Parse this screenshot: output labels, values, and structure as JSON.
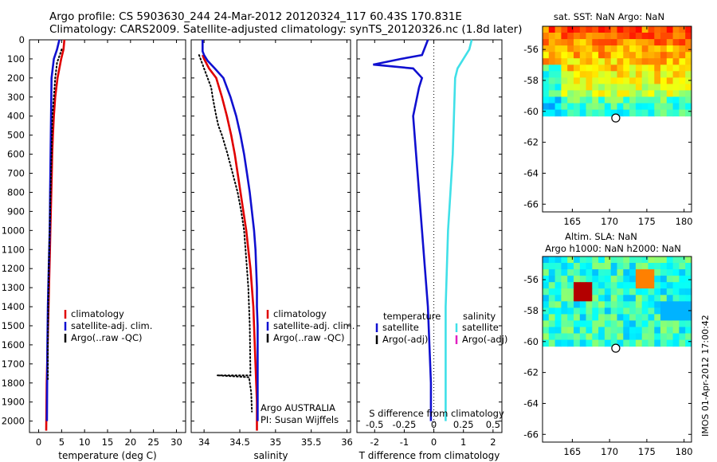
{
  "title_line1": "Argo profile: CS 5903630_244 24-Mar-2012 20120324_117 60.43S 170.831E",
  "title_line2": "Climatology: CARS2009. Satellite-adjusted climatology: synTS_20120326.nc (1.8d later)",
  "footer_stamp": "IMOS 01-Apr-2012 17:00:42",
  "colors": {
    "climatology": "#e00000",
    "satellite": "#1010d0",
    "argo": "#000000",
    "salinity_sat": "#40e0e8",
    "salinity_argo": "#e020c0"
  },
  "chart_data": [
    {
      "type": "line",
      "xlabel": "temperature (deg C)",
      "xticks": [
        "0",
        "5",
        "10",
        "15",
        "20",
        "25",
        "30"
      ],
      "yticks": [
        "0",
        "100",
        "200",
        "300",
        "400",
        "500",
        "600",
        "700",
        "800",
        "900",
        "1000",
        "1100",
        "1200",
        "1300",
        "1400",
        "1500",
        "1600",
        "1700",
        "1800",
        "1900",
        "2000"
      ],
      "xlim": [
        -2,
        32
      ],
      "ylim": [
        2060,
        0
      ],
      "legend_position": "lower-center",
      "series": [
        {
          "name": "climatology",
          "style": "solid",
          "x": [
            5.6,
            5.4,
            4.9,
            4.1,
            3.6,
            3.3,
            3.1,
            2.95,
            2.85,
            2.75,
            2.65,
            2.55,
            2.45,
            2.35,
            2.25,
            2.15,
            2.05,
            1.95,
            1.85,
            1.75,
            1.65
          ],
          "y": [
            0,
            50,
            100,
            200,
            300,
            400,
            500,
            600,
            700,
            800,
            900,
            1000,
            1100,
            1200,
            1300,
            1400,
            1500,
            1600,
            1700,
            1800,
            2050
          ]
        },
        {
          "name": "satellite-adj. clim.",
          "style": "solid",
          "x": [
            4.5,
            4.0,
            3.3,
            2.8,
            2.75,
            2.7,
            2.65,
            2.6,
            2.55,
            2.5,
            2.45,
            2.4,
            2.3,
            2.2,
            2.1,
            2.0,
            1.95,
            1.9,
            1.85,
            1.8
          ],
          "y": [
            0,
            50,
            100,
            200,
            300,
            400,
            500,
            600,
            700,
            800,
            900,
            1000,
            1100,
            1200,
            1300,
            1400,
            1500,
            1600,
            1800,
            2000
          ]
        },
        {
          "name": "Argo(..raw -QC)",
          "style": "dotted",
          "x": [
            5.0,
            4.6,
            4.0,
            3.6,
            3.3,
            3.0,
            2.9,
            2.8,
            2.7,
            2.6,
            2.5,
            2.4,
            2.3,
            2.2,
            2.1,
            2.0,
            2.0
          ],
          "y": [
            50,
            80,
            120,
            200,
            300,
            400,
            500,
            600,
            700,
            800,
            900,
            1000,
            1100,
            1200,
            1400,
            1600,
            1780
          ]
        }
      ]
    },
    {
      "type": "line",
      "xlabel": "salinity",
      "xticks": [
        "34",
        "34.5",
        "35",
        "35.5",
        "36"
      ],
      "xlim": [
        33.82,
        36.05
      ],
      "ylim": [
        2060,
        0
      ],
      "legend_position": "lower-right",
      "annotations": [
        "Argo AUSTRALIA",
        "PI: Susan Wijffels"
      ],
      "series": [
        {
          "name": "climatology",
          "style": "solid",
          "x": [
            33.98,
            34.0,
            34.07,
            34.17,
            34.25,
            34.32,
            34.38,
            34.43,
            34.47,
            34.51,
            34.55,
            34.59,
            34.62,
            34.65,
            34.67,
            34.69,
            34.7,
            34.71,
            34.72,
            34.73,
            34.74,
            34.74
          ],
          "y": [
            80,
            100,
            150,
            200,
            300,
            400,
            500,
            600,
            700,
            800,
            900,
            1000,
            1100,
            1200,
            1300,
            1400,
            1500,
            1600,
            1700,
            1800,
            1900,
            2050
          ]
        },
        {
          "name": "satellite-adj. clim.",
          "style": "solid",
          "x": [
            33.98,
            33.98,
            34.0,
            34.05,
            34.15,
            34.27,
            34.37,
            34.45,
            34.51,
            34.56,
            34.6,
            34.64,
            34.67,
            34.7,
            34.72,
            34.73,
            34.74,
            34.74,
            34.75,
            34.75,
            34.75,
            34.75
          ],
          "y": [
            0,
            60,
            80,
            110,
            150,
            200,
            300,
            400,
            500,
            600,
            700,
            800,
            900,
            1000,
            1100,
            1200,
            1300,
            1400,
            1500,
            1600,
            1800,
            2000
          ]
        },
        {
          "name": "Argo(..raw -QC)",
          "style": "dotted",
          "x": [
            33.93,
            34.0,
            34.05,
            34.1,
            34.12,
            34.17,
            34.2,
            34.25,
            34.33,
            34.4,
            34.47,
            34.52,
            34.56,
            34.58,
            34.6,
            34.62,
            34.64,
            34.65,
            34.18,
            34.63,
            34.66,
            34.67
          ],
          "y": [
            80,
            150,
            200,
            250,
            300,
            400,
            450,
            500,
            600,
            700,
            800,
            900,
            1000,
            1100,
            1200,
            1300,
            1500,
            1760,
            1760,
            1770,
            1850,
            1950
          ]
        }
      ]
    },
    {
      "type": "line",
      "xlabel": "T difference from climatology",
      "xlabel_top": "S difference from climatology",
      "xticks": [
        "-2",
        "-1",
        "0",
        "1",
        "2"
      ],
      "xticks_top": [
        "-0.5",
        "-0.25",
        "0",
        "0.25",
        "0.5"
      ],
      "xlim": [
        -2.6,
        2.3
      ],
      "ylim": [
        2060,
        0
      ],
      "legend_groups": [
        "temperature",
        "salinity"
      ],
      "legend_position": "lower-center",
      "series": [
        {
          "name": "satellite",
          "group": "temperature",
          "style": "solid",
          "x": [
            -0.2,
            -0.3,
            -0.4,
            -1.1,
            -2.05,
            -0.7,
            -0.4,
            -0.5,
            -0.7,
            -0.6,
            -0.5,
            -0.4,
            -0.3,
            -0.2,
            -0.15,
            -0.1,
            -0.1,
            -0.1
          ],
          "y": [
            0,
            40,
            80,
            100,
            130,
            150,
            200,
            250,
            400,
            600,
            800,
            1000,
            1200,
            1400,
            1600,
            1800,
            1950,
            2000
          ]
        },
        {
          "name": "Argo(-adj)",
          "group": "temperature",
          "style": "solid",
          "x": [],
          "y": []
        },
        {
          "name": "satellite",
          "group": "salinity",
          "style": "solid",
          "x": [
            0.32,
            0.3,
            0.25,
            0.2,
            0.18,
            0.17,
            0.16,
            0.14,
            0.12,
            0.11,
            0.1,
            0.1,
            0.1
          ],
          "y": [
            0,
            50,
            100,
            150,
            200,
            400,
            600,
            800,
            1000,
            1200,
            1400,
            1800,
            2000
          ]
        },
        {
          "name": "Argo(-adj)",
          "group": "salinity",
          "style": "solid",
          "x": [],
          "y": []
        }
      ]
    },
    {
      "type": "heatmap",
      "title": "sat. SST: NaN  Argo: NaN",
      "xticks": [
        "165",
        "170",
        "175",
        "180"
      ],
      "yticks": [
        "-56",
        "-58",
        "-60",
        "-62",
        "-64",
        "-66"
      ],
      "xlim": [
        161,
        181
      ],
      "ylim": [
        -66.5,
        -54.5
      ],
      "marker": {
        "x": 170.83,
        "y": -60.43
      }
    },
    {
      "type": "heatmap",
      "title": "Altim. SLA: NaN",
      "subtitle": "Argo h1000: NaN  h2000: NaN",
      "xticks": [
        "165",
        "170",
        "175",
        "180"
      ],
      "yticks": [
        "-56",
        "-58",
        "-60",
        "-62",
        "-64",
        "-66"
      ],
      "xlim": [
        161,
        181
      ],
      "ylim": [
        -66.5,
        -54.5
      ],
      "marker": {
        "x": 170.83,
        "y": -60.43
      }
    }
  ]
}
